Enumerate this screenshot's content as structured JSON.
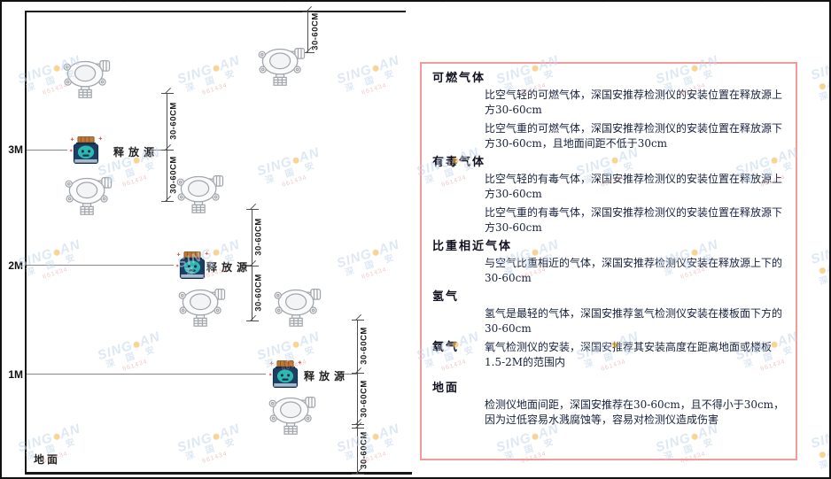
{
  "watermark": {
    "brand_left": "SING",
    "brand_right": "AN",
    "cjk": "深 国 安",
    "code": "661434"
  },
  "diagram": {
    "height_labels": {
      "h3": "3M",
      "h2": "2M",
      "h1": "1M"
    },
    "ground_label": "地面",
    "release_source_label": "释放源",
    "dim_label": "30-60CM"
  },
  "panel": {
    "sections": [
      {
        "heading": "可燃气体",
        "paragraphs": [
          "比空气轻的可燃气体，深国安推荐检测仪的安装位置在释放源上方30-60cm",
          "比空气重的可燃气体，深国安推荐检测仪的安装位置在释放源下方30-60cm，且地面间距不低于30cm"
        ]
      },
      {
        "heading": "有毒气体",
        "paragraphs": [
          "比空气轻的有毒气体，深国安推荐检测仪的安装位置在释放源上方30-60cm",
          "比空气重的有毒气体，深国安推荐检测仪的安装位置在释放源下方30-60cm"
        ]
      },
      {
        "heading": "比重相近气体",
        "paragraphs": [
          "与空气比重相近的气体，深国安推荐检测仪安装在释放源上下的30-60cm"
        ]
      },
      {
        "heading": "氢气",
        "paragraphs": [
          "氢气是最轻的气体，深国安推荐氢气检测仪安装在楼板面下方的30-60cm"
        ]
      },
      {
        "heading": "氧气",
        "paragraphs": [
          "氧气检测仪的安装，深国安推荐其安装高度在距离地面或楼板1.5-2M的范围内"
        ]
      },
      {
        "heading": "地面",
        "paragraphs": [
          "检测仪地面间距，深国安推荐在30-60cm，且不得小于30cm，因为过低容易水溅腐蚀等，容易对检测仪造成伤害"
        ]
      }
    ]
  }
}
